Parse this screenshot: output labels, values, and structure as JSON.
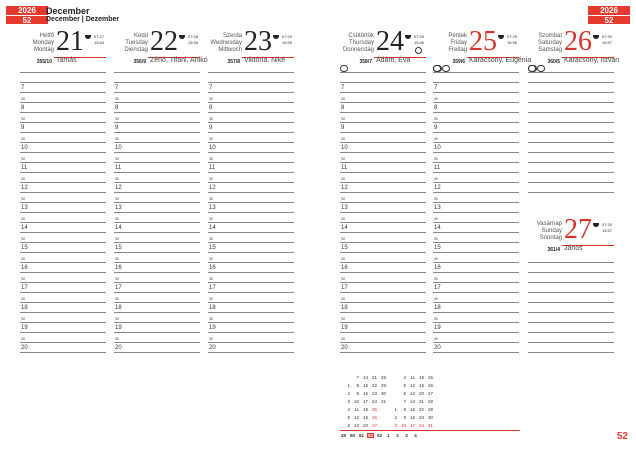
{
  "header": {
    "year": "2026",
    "week": "52",
    "month": "December",
    "month_sub": "December | Dezember"
  },
  "page_number": "52",
  "accent": "#e63a2e",
  "hours": [
    "7",
    "8",
    "9",
    "10",
    "11",
    "12",
    "13",
    "14",
    "15",
    "16",
    "17",
    "18",
    "19",
    "20"
  ],
  "half_label": "30",
  "days": [
    {
      "num": "21",
      "names": [
        "Hétfő",
        "Monday",
        "Montag"
      ],
      "sunrise": "07:27",
      "sunset": "15:54",
      "doy": "355/10",
      "nameday": "Tamás",
      "red": false
    },
    {
      "num": "22",
      "names": [
        "Kedd",
        "Tuesday",
        "Dienstag"
      ],
      "sunrise": "07:28",
      "sunset": "15:55",
      "doy": "356/9",
      "nameday": "Zénó, Tifani, Anikó",
      "red": false
    },
    {
      "num": "23",
      "names": [
        "Szerda",
        "Wednesday",
        "Mittwoch"
      ],
      "sunrise": "07:29",
      "sunset": "15:55",
      "doy": "357/8",
      "nameday": "Viktória, Niké",
      "red": false
    },
    {
      "num": "24",
      "names": [
        "Csütörtök",
        "Thursday",
        "Donnerstag"
      ],
      "sunrise": "07:29",
      "sunset": "15:56",
      "doy": "358/7",
      "nameday": "Ádám, Éva",
      "red": false,
      "moon": "full-moon-icon"
    },
    {
      "num": "25",
      "names": [
        "Péntek",
        "Friday",
        "Freitag"
      ],
      "sunrise": "07:29",
      "sunset": "15:56",
      "doy": "359/6",
      "nameday": "Karácsony, Eugénia",
      "red": true
    },
    {
      "num": "26",
      "names": [
        "Szombat",
        "Saturday",
        "Samstag"
      ],
      "sunrise": "07:30",
      "sunset": "15:57",
      "doy": "360/5",
      "nameday": "Karácsony, István",
      "red": true
    },
    {
      "num": "27",
      "names": [
        "Vasárnap",
        "Sunday",
        "Sonntag"
      ],
      "sunrise": "07:30",
      "sunset": "15:57",
      "doy": "361/4",
      "nameday": "János",
      "red": true
    }
  ],
  "mini_calendar": {
    "december": [
      [
        "",
        "7",
        "14",
        "21",
        "28"
      ],
      [
        "1",
        "8",
        "15",
        "22",
        "29"
      ],
      [
        "2",
        "9",
        "16",
        "23",
        "30"
      ],
      [
        "3",
        "10",
        "17",
        "24",
        "31"
      ],
      [
        "4",
        "11",
        "18",
        "25"
      ],
      [
        "5",
        "12",
        "19",
        "26"
      ],
      [
        "6",
        "13",
        "20",
        "27"
      ]
    ],
    "january": [
      [
        "",
        "4",
        "11",
        "18",
        "25"
      ],
      [
        "",
        "5",
        "12",
        "19",
        "26"
      ],
      [
        "",
        "6",
        "13",
        "20",
        "27"
      ],
      [
        "",
        "7",
        "14",
        "21",
        "28"
      ],
      [
        "1",
        "8",
        "15",
        "22",
        "29"
      ],
      [
        "2",
        "9",
        "16",
        "23",
        "30"
      ],
      [
        "3",
        "10",
        "17",
        "24",
        "31"
      ]
    ],
    "weeks": [
      "49",
      "50",
      "51",
      "52",
      "53",
      "1",
      "2",
      "3",
      "4"
    ],
    "current_week": "52"
  }
}
